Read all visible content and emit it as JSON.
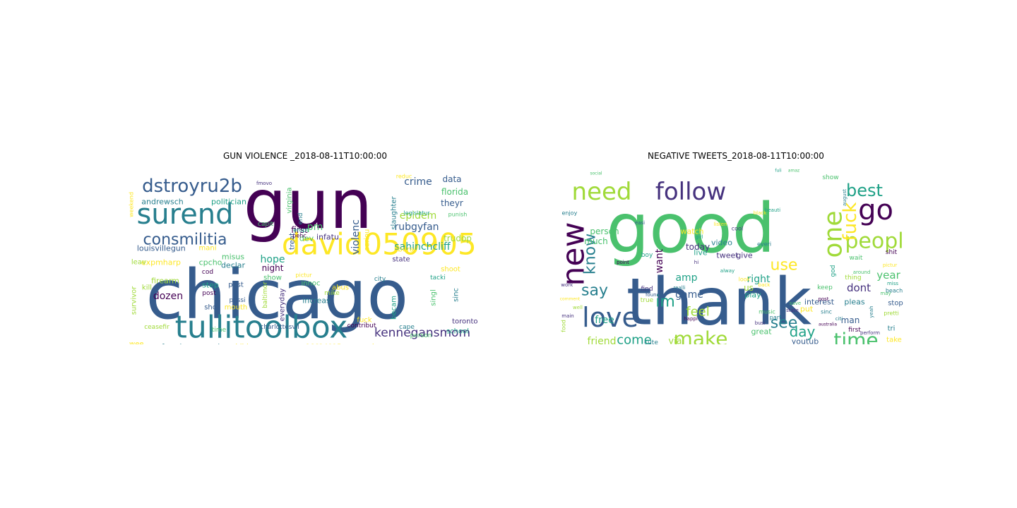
{
  "chart_data": [
    {
      "type": "wordcloud",
      "title": "GUN VIOLENCE _2018-08-11T10:00:00",
      "background": "#ffffff",
      "colormap": "viridis",
      "words": [
        {
          "text": "chicago",
          "weight": 100
        },
        {
          "text": "gun",
          "weight": 92
        },
        {
          "text": "tullitoolbox",
          "weight": 64
        },
        {
          "text": "david050905",
          "weight": 58
        },
        {
          "text": "surend",
          "weight": 47
        },
        {
          "text": "dstroyru2b",
          "weight": 38
        },
        {
          "text": "consmilitia",
          "weight": 30
        },
        {
          "text": "kennegansmom",
          "weight": 24
        },
        {
          "text": "sahinchcliff",
          "weight": 20
        },
        {
          "text": "rubgyfan",
          "weight": 18
        },
        {
          "text": "crime",
          "weight": 17
        },
        {
          "text": "epidem",
          "weight": 17
        },
        {
          "text": "violenc",
          "weight": 16
        },
        {
          "text": "dozen",
          "weight": 16
        },
        {
          "text": "hope",
          "weight": 15
        },
        {
          "text": "florida",
          "weight": 14
        },
        {
          "text": "data",
          "weight": 13
        },
        {
          "text": "theyr",
          "weight": 13
        },
        {
          "text": "trudop",
          "weight": 13
        },
        {
          "text": "night",
          "weight": 13
        },
        {
          "text": "pm",
          "weight": 13
        },
        {
          "text": "first",
          "weight": 13
        },
        {
          "text": "dev",
          "weight": 12
        },
        {
          "text": "infatu",
          "weight": 12
        },
        {
          "text": "politician",
          "weight": 12
        },
        {
          "text": "andrewsch",
          "weight": 12
        },
        {
          "text": "louisvillegun",
          "weight": 12
        },
        {
          "text": "expmharp",
          "weight": 12
        },
        {
          "text": "cpcho",
          "weight": 12
        },
        {
          "text": "leav",
          "weight": 11
        },
        {
          "text": "mani",
          "weight": 11
        },
        {
          "text": "misus",
          "weight": 11
        },
        {
          "text": "declar",
          "weight": 11
        },
        {
          "text": "mouth",
          "weight": 11
        },
        {
          "text": "firearm",
          "weight": 11
        },
        {
          "text": "kill",
          "weight": 11
        },
        {
          "text": "step",
          "weight": 11
        },
        {
          "text": "past",
          "weight": 11
        },
        {
          "text": "shot",
          "weight": 11
        },
        {
          "text": "show",
          "weight": 11
        },
        {
          "text": "innoc",
          "weight": 11
        },
        {
          "text": "increas",
          "weight": 11
        },
        {
          "text": "abus",
          "weight": 11
        },
        {
          "text": "singl",
          "weight": 11
        },
        {
          "text": "sinc",
          "weight": 11
        },
        {
          "text": "becam",
          "weight": 11
        },
        {
          "text": "toronto",
          "weight": 11
        },
        {
          "text": "school",
          "weight": 11
        },
        {
          "text": "shoot",
          "weight": 11
        },
        {
          "text": "state",
          "weight": 11
        },
        {
          "text": "libera",
          "weight": 11
        },
        {
          "text": "slaughter",
          "weight": 11
        },
        {
          "text": "fuck",
          "weight": 11
        },
        {
          "text": "seriou",
          "weight": 11
        },
        {
          "text": "virginia",
          "weight": 11
        },
        {
          "text": "treat",
          "weight": 11
        },
        {
          "text": "survivor",
          "weight": 11
        },
        {
          "text": "everyday",
          "weight": 11
        },
        {
          "text": "baltimor",
          "weight": 10
        },
        {
          "text": "francismmaxwel",
          "weight": 10
        },
        {
          "text": "children",
          "weight": 10
        },
        {
          "text": "usernam96614015",
          "weight": 10
        },
        {
          "text": "senseless",
          "weight": 10
        },
        {
          "text": "wee",
          "weight": 10
        },
        {
          "text": "ceasefir",
          "weight": 9
        },
        {
          "text": "charlottesvil",
          "weight": 9
        },
        {
          "text": "contribut",
          "weight": 9
        },
        {
          "text": "cape",
          "weight": 9
        },
        {
          "text": "person",
          "weight": 9
        },
        {
          "text": "time",
          "weight": 9
        },
        {
          "text": "city",
          "weight": 9
        },
        {
          "text": "tacki",
          "weight": 9
        },
        {
          "text": "mike",
          "weight": 9
        },
        {
          "text": "possi",
          "weight": 9
        },
        {
          "text": "post",
          "weight": 9
        },
        {
          "text": "capit",
          "weight": 9
        },
        {
          "text": "cod",
          "weight": 9
        },
        {
          "text": "end",
          "weight": 9
        },
        {
          "text": "erupt",
          "weight": 9
        },
        {
          "text": "pehc",
          "weight": 9
        },
        {
          "text": "reduc",
          "weight": 9
        },
        {
          "text": "legislatur",
          "weight": 9
        },
        {
          "text": "punish",
          "weight": 9
        },
        {
          "text": "pictur",
          "weight": 9
        },
        {
          "text": "weekend",
          "weight": 8
        },
        {
          "text": "fmovo",
          "weight": 8
        }
      ]
    },
    {
      "type": "wordcloud",
      "title": "NEGATIVE TWEETS_2018-08-11T10:00:00",
      "background": "#ffffff",
      "colormap": "viridis",
      "words": [
        {
          "text": "good",
          "weight": 100
        },
        {
          "text": "thank",
          "weight": 96
        },
        {
          "text": "new",
          "weight": 46
        },
        {
          "text": "go",
          "weight": 42
        },
        {
          "text": "follow",
          "weight": 40
        },
        {
          "text": "need",
          "weight": 40
        },
        {
          "text": "one",
          "weight": 38
        },
        {
          "text": "love",
          "weight": 38
        },
        {
          "text": "peopl",
          "weight": 36
        },
        {
          "text": "make",
          "weight": 33
        },
        {
          "text": "time",
          "weight": 33
        },
        {
          "text": "fuck",
          "weight": 30
        },
        {
          "text": "best",
          "weight": 28
        },
        {
          "text": "use",
          "weight": 26
        },
        {
          "text": "say",
          "weight": 26
        },
        {
          "text": "know",
          "weight": 25
        },
        {
          "text": "see",
          "weight": 25
        },
        {
          "text": "im",
          "weight": 25
        },
        {
          "text": "day",
          "weight": 24
        },
        {
          "text": "come",
          "weight": 22
        },
        {
          "text": "feel",
          "weight": 21
        },
        {
          "text": "year",
          "weight": 18
        },
        {
          "text": "dont",
          "weight": 18
        },
        {
          "text": "right",
          "weight": 17
        },
        {
          "text": "want",
          "weight": 17
        },
        {
          "text": "friend",
          "weight": 17
        },
        {
          "text": "free",
          "weight": 16
        },
        {
          "text": "amp",
          "weight": 16
        },
        {
          "text": "game",
          "weight": 15
        },
        {
          "text": "person",
          "weight": 13
        },
        {
          "text": "today",
          "weight": 13
        },
        {
          "text": "much",
          "weight": 13
        },
        {
          "text": "watch",
          "weight": 12
        },
        {
          "text": "tweet",
          "weight": 12
        },
        {
          "text": "video",
          "weight": 12
        },
        {
          "text": "give",
          "weight": 12
        },
        {
          "text": "live",
          "weight": 12
        },
        {
          "text": "us",
          "weight": 13
        },
        {
          "text": "man",
          "weight": 12
        },
        {
          "text": "pleas",
          "weight": 12
        },
        {
          "text": "interest",
          "weight": 11
        },
        {
          "text": "play",
          "weight": 11
        },
        {
          "text": "put",
          "weight": 11
        },
        {
          "text": "via",
          "weight": 12
        },
        {
          "text": "great",
          "weight": 11
        },
        {
          "text": "youtub",
          "weight": 11
        },
        {
          "text": "take",
          "weight": 10
        },
        {
          "text": "tri",
          "weight": 10
        },
        {
          "text": "stop",
          "weight": 10
        },
        {
          "text": "top",
          "weight": 10
        },
        {
          "text": "first",
          "weight": 10
        },
        {
          "text": "thing",
          "weight": 10
        },
        {
          "text": "show",
          "weight": 10
        },
        {
          "text": "wait",
          "weight": 10
        },
        {
          "text": "keep",
          "weight": 10
        },
        {
          "text": "shit",
          "weight": 10
        },
        {
          "text": "god",
          "weight": 10
        },
        {
          "text": "true",
          "weight": 9
        },
        {
          "text": "find",
          "weight": 9
        },
        {
          "text": "cute",
          "weight": 9
        },
        {
          "text": "food",
          "weight": 9
        },
        {
          "text": "sinc",
          "weight": 9
        },
        {
          "text": "boy",
          "weight": 9
        },
        {
          "text": "beach",
          "weight": 9
        },
        {
          "text": "enjoy",
          "weight": 9
        },
        {
          "text": "pretti",
          "weight": 9
        },
        {
          "text": "music",
          "weight": 9
        },
        {
          "text": "cool",
          "weight": 9
        },
        {
          "text": "look",
          "weight": 9
        },
        {
          "text": "everi",
          "weight": 9
        },
        {
          "text": "part",
          "weight": 9
        },
        {
          "text": "happi",
          "weight": 8
        },
        {
          "text": "point",
          "weight": 8
        },
        {
          "text": "hi",
          "weight": 8
        },
        {
          "text": "found",
          "weight": 8
        },
        {
          "text": "yeah",
          "weight": 8
        },
        {
          "text": "well",
          "weight": 8
        },
        {
          "text": "girl",
          "weight": 8
        },
        {
          "text": "listen",
          "weight": 8
        },
        {
          "text": "work",
          "weight": 8
        },
        {
          "text": "realli",
          "weight": 8
        },
        {
          "text": "alway",
          "weight": 8
        },
        {
          "text": "beauti",
          "weight": 8
        },
        {
          "text": "back",
          "weight": 8
        },
        {
          "text": "save",
          "weight": 8
        },
        {
          "text": "post",
          "weight": 8
        },
        {
          "text": "easi",
          "weight": 8
        },
        {
          "text": "busi",
          "weight": 8
        },
        {
          "text": "perform",
          "weight": 8
        },
        {
          "text": "pictur",
          "weight": 8
        },
        {
          "text": "citi",
          "weight": 8
        },
        {
          "text": "state",
          "weight": 8
        },
        {
          "text": "august",
          "weight": 8
        },
        {
          "text": "around",
          "weight": 8
        },
        {
          "text": "black",
          "weight": 8
        },
        {
          "text": "unfollow",
          "weight": 8
        },
        {
          "text": "may",
          "weight": 8
        },
        {
          "text": "miss",
          "weight": 8
        },
        {
          "text": "main",
          "weight": 7
        },
        {
          "text": "social",
          "weight": 7
        },
        {
          "text": "fuli",
          "weight": 7
        },
        {
          "text": "amaz",
          "weight": 7
        },
        {
          "text": "australia",
          "weight": 7
        },
        {
          "text": "comment",
          "weight": 7
        }
      ]
    }
  ]
}
